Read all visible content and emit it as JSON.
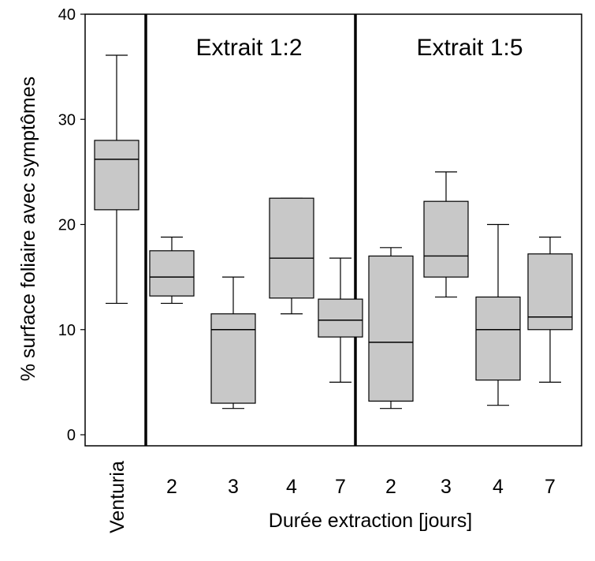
{
  "chart_data": {
    "type": "boxplot",
    "ylabel": "% surface foliaire avec symptômes",
    "xlabel": "Durée extraction [jours]",
    "ylim": [
      0,
      40
    ],
    "yticks": [
      "0",
      "10",
      "20",
      "30",
      "40"
    ],
    "grid": false,
    "legend": "none",
    "box_color": "#c8c8c8",
    "panels": [
      {
        "title": "",
        "categories": [
          "Venturia"
        ]
      },
      {
        "title": "Extrait 1:2",
        "categories": [
          "2",
          "3",
          "4",
          "7"
        ]
      },
      {
        "title": "Extrait 1:5",
        "categories": [
          "2",
          "3",
          "4",
          "7"
        ]
      }
    ],
    "boxes": [
      {
        "label": "Venturia",
        "panel": 0,
        "min": 12.5,
        "q1": 21.4,
        "median": 26.2,
        "q3": 28.0,
        "max": 36.1
      },
      {
        "label": "2",
        "panel": 1,
        "min": 12.5,
        "q1": 13.2,
        "median": 15.0,
        "q3": 17.5,
        "max": 18.8
      },
      {
        "label": "3",
        "panel": 1,
        "min": 2.5,
        "q1": 3.0,
        "median": 10.0,
        "q3": 11.5,
        "max": 15.0
      },
      {
        "label": "4",
        "panel": 1,
        "min": 11.5,
        "q1": 13.0,
        "median": 16.8,
        "q3": 22.5,
        "max": 22.5
      },
      {
        "label": "7",
        "panel": 1,
        "min": 5.0,
        "q1": 9.3,
        "median": 10.9,
        "q3": 12.9,
        "max": 16.8
      },
      {
        "label": "2",
        "panel": 2,
        "min": 2.5,
        "q1": 3.2,
        "median": 8.8,
        "q3": 17.0,
        "max": 17.8
      },
      {
        "label": "3",
        "panel": 2,
        "min": 13.1,
        "q1": 15.0,
        "median": 17.0,
        "q3": 22.2,
        "max": 25.0
      },
      {
        "label": "4",
        "panel": 2,
        "min": 2.8,
        "q1": 5.2,
        "median": 10.0,
        "q3": 13.1,
        "max": 20.0
      },
      {
        "label": "7",
        "panel": 2,
        "min": 5.0,
        "q1": 10.0,
        "median": 11.2,
        "q3": 17.2,
        "max": 18.8
      }
    ]
  }
}
